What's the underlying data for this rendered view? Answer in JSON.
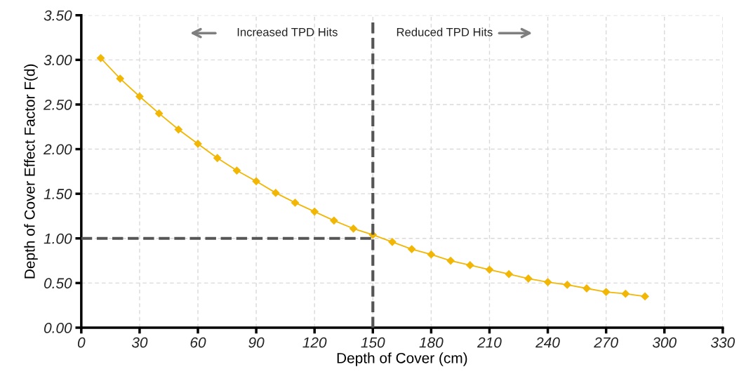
{
  "chart_data": {
    "type": "line",
    "xlabel": "Depth of Cover (cm)",
    "ylabel": "Depth of Cover Effect Factor F(d)",
    "x": [
      10,
      20,
      30,
      40,
      50,
      60,
      70,
      80,
      90,
      100,
      110,
      120,
      130,
      140,
      150,
      160,
      170,
      180,
      190,
      200,
      210,
      220,
      230,
      240,
      250,
      260,
      270,
      280,
      290
    ],
    "series": [
      {
        "color": "#f2b705",
        "values": [
          3.02,
          2.79,
          2.59,
          2.4,
          2.22,
          2.06,
          1.9,
          1.76,
          1.64,
          1.51,
          1.4,
          1.3,
          1.2,
          1.11,
          1.04,
          0.96,
          0.88,
          0.82,
          0.75,
          0.7,
          0.65,
          0.6,
          0.55,
          0.51,
          0.48,
          0.44,
          0.4,
          0.38,
          0.35
        ]
      }
    ],
    "xlim": [
      0,
      330
    ],
    "xticks": [
      0,
      30,
      60,
      90,
      120,
      150,
      180,
      210,
      240,
      270,
      300,
      330
    ],
    "ylim": [
      0,
      3.5
    ],
    "yticks": [
      {
        "value": 0,
        "label": "0.00"
      },
      {
        "value": 0.5,
        "label": "0.50"
      },
      {
        "value": 1,
        "label": "1.00"
      },
      {
        "value": 1.5,
        "label": "1.50"
      },
      {
        "value": 2,
        "label": "2.00"
      },
      {
        "value": 2.5,
        "label": "2.50"
      },
      {
        "value": 3,
        "label": "3.00"
      },
      {
        "value": 3.5,
        "label": "3.50"
      }
    ],
    "ref_lines": [
      {
        "axis": "x",
        "value": 150,
        "color": "#555555",
        "line_style": "dashed"
      },
      {
        "axis": "y",
        "value": 1,
        "color": "#555555",
        "line_style": "dashed"
      }
    ],
    "annotations": [
      "Increased TPD Hits",
      "Reduced TPD Hits"
    ],
    "grid": true,
    "marker": "diamond",
    "line_style": "solid"
  }
}
